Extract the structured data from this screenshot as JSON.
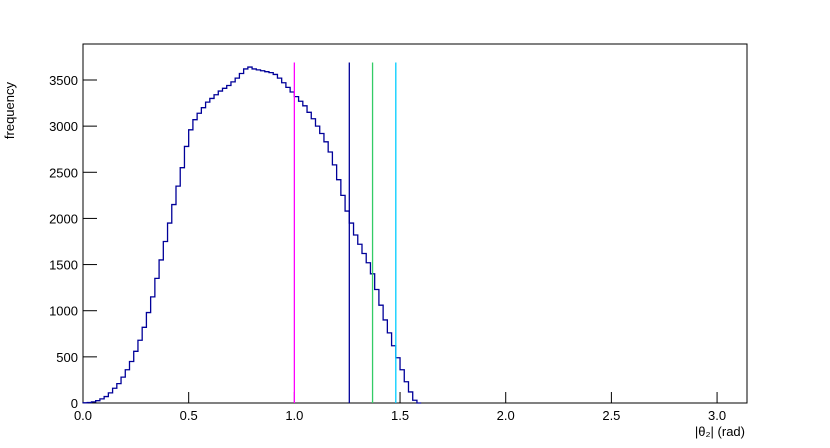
{
  "chart_data": {
    "type": "histogram",
    "xlabel": "|θ₂| (rad)",
    "ylabel": "frequency",
    "bins": [
      0,
      0.02,
      0.04,
      0.06,
      0.08,
      0.1,
      0.12,
      0.14,
      0.16,
      0.18,
      0.2,
      0.22,
      0.24,
      0.26,
      0.28,
      0.3,
      0.32,
      0.34,
      0.36,
      0.38,
      0.4,
      0.42,
      0.44,
      0.46,
      0.48,
      0.5,
      0.52,
      0.54,
      0.56,
      0.58,
      0.6,
      0.62,
      0.64,
      0.66,
      0.68,
      0.7,
      0.72,
      0.74,
      0.76,
      0.78,
      0.8,
      0.82,
      0.84,
      0.86,
      0.88,
      0.9,
      0.92,
      0.94,
      0.96,
      0.98,
      1.0,
      1.02,
      1.04,
      1.06,
      1.08,
      1.1,
      1.12,
      1.14,
      1.16,
      1.18,
      1.2,
      1.22,
      1.24,
      1.26,
      1.28,
      1.3,
      1.32,
      1.34,
      1.36,
      1.38,
      1.4,
      1.42,
      1.44,
      1.46,
      1.48,
      1.5,
      1.52,
      1.54,
      1.56,
      1.58,
      1.6
    ],
    "values": [
      2,
      5,
      12,
      25,
      45,
      70,
      110,
      160,
      210,
      280,
      360,
      450,
      560,
      680,
      820,
      980,
      1150,
      1350,
      1550,
      1750,
      1950,
      2150,
      2350,
      2550,
      2780,
      2960,
      3070,
      3140,
      3200,
      3260,
      3300,
      3340,
      3380,
      3410,
      3440,
      3480,
      3520,
      3570,
      3620,
      3640,
      3620,
      3610,
      3600,
      3590,
      3580,
      3560,
      3520,
      3470,
      3420,
      3370,
      3320,
      3270,
      3220,
      3150,
      3080,
      3000,
      2920,
      2830,
      2720,
      2580,
      2420,
      2250,
      2080,
      1950,
      1820,
      1720,
      1620,
      1520,
      1400,
      1230,
      1060,
      900,
      760,
      620,
      490,
      360,
      230,
      120,
      30,
      0
    ],
    "color": "#000099",
    "vlines": [
      {
        "x": 1.0,
        "color": "#ff00ff"
      },
      {
        "x": 1.26,
        "color": "#000099"
      },
      {
        "x": 1.37,
        "color": "#33cc66"
      },
      {
        "x": 1.48,
        "color": "#00ccff"
      }
    ],
    "vline_top": 3690,
    "xlim": [
      0,
      3.1416
    ],
    "ylim": [
      0,
      3890
    ],
    "xticks": [
      {
        "value": 0,
        "label": "0.0"
      },
      0.5,
      {
        "value": 1,
        "label": "1.0"
      },
      1.5,
      {
        "value": 2,
        "label": "2.0"
      },
      2.5,
      {
        "value": 3,
        "label": "3.0"
      }
    ],
    "yticks": [
      0,
      500,
      1000,
      1500,
      2000,
      2500,
      3000,
      3500
    ]
  }
}
